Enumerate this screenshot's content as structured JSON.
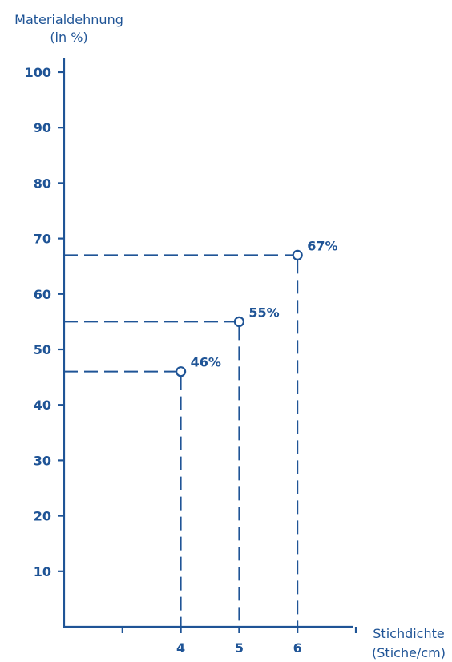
{
  "chart_data": {
    "type": "scatter",
    "ylabel_lines": [
      "Materialdehnung",
      "(in %)"
    ],
    "xlabel_lines": [
      "Stichdichte",
      "(Stiche/cm)"
    ],
    "y_ticks": [
      10,
      20,
      30,
      40,
      50,
      60,
      70,
      80,
      90,
      100
    ],
    "x_tick_marks": [
      3,
      4,
      5,
      6,
      7
    ],
    "x_tick_labels": [
      {
        "value": 4,
        "label": "4"
      },
      {
        "value": 5,
        "label": "5"
      },
      {
        "value": 6,
        "label": "6"
      }
    ],
    "ylim": [
      0,
      100
    ],
    "xlim": [
      2,
      7
    ],
    "points": [
      {
        "x": 4,
        "y": 46,
        "label": "46%"
      },
      {
        "x": 5,
        "y": 55,
        "label": "55%"
      },
      {
        "x": 6,
        "y": 67,
        "label": "67%"
      }
    ],
    "guide_lines": true,
    "grid": false,
    "colors": {
      "primary": "#1f5496",
      "background": "#ffffff"
    }
  }
}
